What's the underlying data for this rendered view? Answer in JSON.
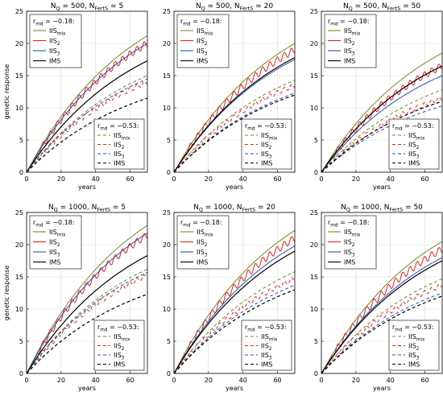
{
  "colors": {
    "IIS_mix": "#6b8e23",
    "IIS_2": "#e8221b",
    "IIS_3": "#2b50b5",
    "IMS": "#000000"
  },
  "legend": {
    "top_title": "r",
    "top_title_sub": "md",
    "top_value": " = −0.18:",
    "bottom_title": "r",
    "bottom_title_sub": "md",
    "bottom_value": " = −0.53:",
    "entries": [
      {
        "key": "IIS_mix",
        "main": "IIS",
        "sub": "mix"
      },
      {
        "key": "IIS_2",
        "main": "IIS",
        "sub": "2"
      },
      {
        "key": "IIS_3",
        "main": "IIS",
        "sub": "3"
      },
      {
        "key": "IMS",
        "main": "IMS",
        "sub": ""
      }
    ]
  },
  "chart_data": [
    {
      "type": "line",
      "title": "N_Q = 500,   N_FertS = 5",
      "title_parts": {
        "a": "N",
        "a_sub": "Q",
        "b": " = 500,   N",
        "b_sub": "FertS",
        "c": " = 5"
      },
      "xlabel": "years",
      "ylabel": "genetic response",
      "xlim": [
        0,
        70
      ],
      "ylim": [
        0,
        25
      ],
      "xticks": [
        0,
        20,
        40,
        60
      ],
      "yticks": [
        0,
        5,
        10,
        15,
        20,
        25
      ],
      "grid": true,
      "legend_position": [
        "top-left",
        "bottom-right"
      ],
      "series": [
        {
          "name": "IIS_mix",
          "r_md": -0.18,
          "style": "solid",
          "endpoint": 21.2
        },
        {
          "name": "IIS_2",
          "r_md": -0.18,
          "style": "solid",
          "endpoint": 20.0
        },
        {
          "name": "IIS_3",
          "r_md": -0.18,
          "style": "solid",
          "endpoint": 20.0
        },
        {
          "name": "IMS",
          "r_md": -0.18,
          "style": "solid",
          "endpoint": 17.3
        },
        {
          "name": "IIS_mix",
          "r_md": -0.53,
          "style": "dashed",
          "endpoint": 15.0
        },
        {
          "name": "IIS_2",
          "r_md": -0.53,
          "style": "dashed",
          "endpoint": 14.0
        },
        {
          "name": "IIS_3",
          "r_md": -0.53,
          "style": "dashed",
          "endpoint": 14.5
        },
        {
          "name": "IMS",
          "r_md": -0.53,
          "style": "dashed",
          "endpoint": 11.5
        }
      ]
    },
    {
      "type": "line",
      "title": "N_Q = 500,   N_FertS = 20",
      "title_parts": {
        "a": "N",
        "a_sub": "Q",
        "b": " = 500,   N",
        "b_sub": "FertS",
        "c": " = 20"
      },
      "xlabel": "years",
      "ylabel": "",
      "xlim": [
        0,
        70
      ],
      "ylim": [
        0,
        25
      ],
      "xticks": [
        0,
        20,
        40,
        60
      ],
      "yticks": [
        0,
        5,
        10,
        15,
        20,
        25
      ],
      "grid": true,
      "legend_position": [
        "top-left",
        "bottom-right"
      ],
      "series": [
        {
          "name": "IIS_mix",
          "r_md": -0.18,
          "style": "solid",
          "endpoint": 20.0
        },
        {
          "name": "IIS_2",
          "r_md": -0.18,
          "style": "solid",
          "endpoint": 19.0
        },
        {
          "name": "IIS_3",
          "r_md": -0.18,
          "style": "solid",
          "endpoint": 17.5
        },
        {
          "name": "IMS",
          "r_md": -0.18,
          "style": "solid",
          "endpoint": 17.8
        },
        {
          "name": "IIS_mix",
          "r_md": -0.53,
          "style": "dashed",
          "endpoint": 14.3
        },
        {
          "name": "IIS_2",
          "r_md": -0.53,
          "style": "dashed",
          "endpoint": 13.5
        },
        {
          "name": "IIS_3",
          "r_md": -0.53,
          "style": "dashed",
          "endpoint": 12.3
        },
        {
          "name": "IMS",
          "r_md": -0.53,
          "style": "dashed",
          "endpoint": 12.0
        }
      ]
    },
    {
      "type": "line",
      "title": "N_Q = 500,   N_FertS = 50",
      "title_parts": {
        "a": "N",
        "a_sub": "Q",
        "b": " = 500,   N",
        "b_sub": "FertS",
        "c": " = 50"
      },
      "xlabel": "years",
      "ylabel": "",
      "xlim": [
        0,
        70
      ],
      "ylim": [
        0,
        25
      ],
      "xticks": [
        0,
        20,
        40,
        60
      ],
      "yticks": [
        0,
        5,
        10,
        15,
        20,
        25
      ],
      "grid": true,
      "legend_position": [
        "top-left",
        "bottom-right"
      ],
      "series": [
        {
          "name": "IIS_mix",
          "r_md": -0.18,
          "style": "solid",
          "endpoint": 18.5
        },
        {
          "name": "IIS_2",
          "r_md": -0.18,
          "style": "solid",
          "endpoint": 16.5
        },
        {
          "name": "IIS_3",
          "r_md": -0.18,
          "style": "solid",
          "endpoint": 15.0
        },
        {
          "name": "IMS",
          "r_md": -0.18,
          "style": "solid",
          "endpoint": 16.5
        },
        {
          "name": "IIS_mix",
          "r_md": -0.53,
          "style": "dashed",
          "endpoint": 12.8
        },
        {
          "name": "IIS_2",
          "r_md": -0.53,
          "style": "dashed",
          "endpoint": 11.5
        },
        {
          "name": "IIS_3",
          "r_md": -0.53,
          "style": "dashed",
          "endpoint": 10.3
        },
        {
          "name": "IMS",
          "r_md": -0.53,
          "style": "dashed",
          "endpoint": 11.0
        }
      ]
    },
    {
      "type": "line",
      "title": "N_Q = 1000,   N_FertS = 5",
      "title_parts": {
        "a": "N",
        "a_sub": "Q",
        "b": " = 1000,   N",
        "b_sub": "FertS",
        "c": " = 5"
      },
      "xlabel": "years",
      "ylabel": "genetic response",
      "xlim": [
        0,
        70
      ],
      "ylim": [
        0,
        25
      ],
      "xticks": [
        0,
        20,
        40,
        60
      ],
      "yticks": [
        0,
        5,
        10,
        15,
        20,
        25
      ],
      "grid": true,
      "legend_position": [
        "top-left",
        "bottom-right"
      ],
      "series": [
        {
          "name": "IIS_mix",
          "r_md": -0.18,
          "style": "solid",
          "endpoint": 23.0
        },
        {
          "name": "IIS_2",
          "r_md": -0.18,
          "style": "solid",
          "endpoint": 21.5
        },
        {
          "name": "IIS_3",
          "r_md": -0.18,
          "style": "solid",
          "endpoint": 21.8
        },
        {
          "name": "IMS",
          "r_md": -0.18,
          "style": "solid",
          "endpoint": 18.3
        },
        {
          "name": "IIS_mix",
          "r_md": -0.53,
          "style": "dashed",
          "endpoint": 16.2
        },
        {
          "name": "IIS_2",
          "r_md": -0.53,
          "style": "dashed",
          "endpoint": 15.2
        },
        {
          "name": "IIS_3",
          "r_md": -0.53,
          "style": "dashed",
          "endpoint": 15.7
        },
        {
          "name": "IMS",
          "r_md": -0.53,
          "style": "dashed",
          "endpoint": 12.3
        }
      ]
    },
    {
      "type": "line",
      "title": "N_Q = 1000,   N_FertS = 20",
      "title_parts": {
        "a": "N",
        "a_sub": "Q",
        "b": " = 1000,   N",
        "b_sub": "FertS",
        "c": " = 20"
      },
      "xlabel": "years",
      "ylabel": "",
      "xlim": [
        0,
        70
      ],
      "ylim": [
        0,
        25
      ],
      "xticks": [
        0,
        20,
        40,
        60
      ],
      "yticks": [
        0,
        5,
        10,
        15,
        20,
        25
      ],
      "grid": true,
      "legend_position": [
        "top-left",
        "bottom-right"
      ],
      "series": [
        {
          "name": "IIS_mix",
          "r_md": -0.18,
          "style": "solid",
          "endpoint": 22.2
        },
        {
          "name": "IIS_2",
          "r_md": -0.18,
          "style": "solid",
          "endpoint": 21.0
        },
        {
          "name": "IIS_3",
          "r_md": -0.18,
          "style": "solid",
          "endpoint": 19.8
        },
        {
          "name": "IMS",
          "r_md": -0.18,
          "style": "solid",
          "endpoint": 19.0
        },
        {
          "name": "IIS_mix",
          "r_md": -0.53,
          "style": "dashed",
          "endpoint": 15.8
        },
        {
          "name": "IIS_2",
          "r_md": -0.53,
          "style": "dashed",
          "endpoint": 14.7
        },
        {
          "name": "IIS_3",
          "r_md": -0.53,
          "style": "dashed",
          "endpoint": 13.7
        },
        {
          "name": "IMS",
          "r_md": -0.53,
          "style": "dashed",
          "endpoint": 13.0
        }
      ]
    },
    {
      "type": "line",
      "title": "N_Q = 1000,   N_FertS = 50",
      "title_parts": {
        "a": "N",
        "a_sub": "Q",
        "b": " = 1000,   N",
        "b_sub": "FertS",
        "c": " = 50"
      },
      "xlabel": "years",
      "ylabel": "",
      "xlim": [
        0,
        70
      ],
      "ylim": [
        0,
        25
      ],
      "xticks": [
        0,
        20,
        40,
        60
      ],
      "yticks": [
        0,
        5,
        10,
        15,
        20,
        25
      ],
      "grid": true,
      "legend_position": [
        "top-left",
        "bottom-right"
      ],
      "series": [
        {
          "name": "IIS_mix",
          "r_md": -0.18,
          "style": "solid",
          "endpoint": 20.5
        },
        {
          "name": "IIS_2",
          "r_md": -0.18,
          "style": "solid",
          "endpoint": 19.3
        },
        {
          "name": "IIS_3",
          "r_md": -0.18,
          "style": "solid",
          "endpoint": 18.0
        },
        {
          "name": "IMS",
          "r_md": -0.18,
          "style": "solid",
          "endpoint": 17.5
        },
        {
          "name": "IIS_mix",
          "r_md": -0.53,
          "style": "dashed",
          "endpoint": 14.7
        },
        {
          "name": "IIS_2",
          "r_md": -0.53,
          "style": "dashed",
          "endpoint": 13.7
        },
        {
          "name": "IIS_3",
          "r_md": -0.53,
          "style": "dashed",
          "endpoint": 12.5
        },
        {
          "name": "IMS",
          "r_md": -0.53,
          "style": "dashed",
          "endpoint": 12.0
        }
      ]
    }
  ]
}
